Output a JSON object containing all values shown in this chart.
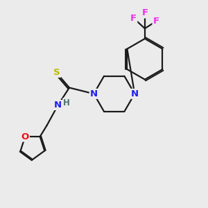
{
  "bg_color": "#ebebeb",
  "bond_color": "#1a1a1a",
  "N_color": "#2020ee",
  "O_color": "#ee1010",
  "S_color": "#bbbb00",
  "F_color": "#ee30ee",
  "H_color": "#507070",
  "figsize": [
    3.0,
    3.0
  ],
  "dpi": 100,
  "xlim": [
    0,
    10
  ],
  "ylim": [
    0,
    10
  ]
}
